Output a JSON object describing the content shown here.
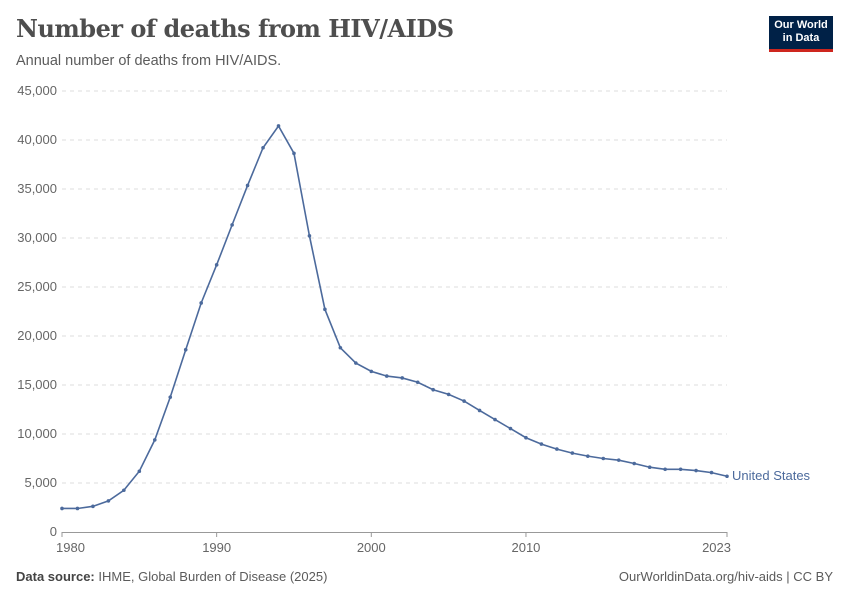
{
  "header": {
    "title": "Number of deaths from HIV/AIDS",
    "subtitle": "Annual number of deaths from HIV/AIDS.",
    "logo": "Our World in Data"
  },
  "footer": {
    "source_label": "Data source:",
    "source": "IHME, Global Burden of Disease (2025)",
    "url": "OurWorldinData.org/hiv-aids | CC BY"
  },
  "chart_data": {
    "type": "line",
    "title": "Number of deaths from HIV/AIDS",
    "xlim": [
      1980,
      2023
    ],
    "ylim": [
      0,
      45000
    ],
    "x_ticks": [
      1980,
      1990,
      2000,
      2010,
      2023
    ],
    "y_ticks": [
      0,
      5000,
      10000,
      15000,
      20000,
      25000,
      30000,
      35000,
      40000,
      45000
    ],
    "y_tick_labels": [
      "0",
      "5,000",
      "10,000",
      "15,000",
      "20,000",
      "25,000",
      "30,000",
      "35,000",
      "40,000",
      "45,000"
    ],
    "grid": "horizontal dashed",
    "series": [
      {
        "name": "United States",
        "color": "#4c6a9c",
        "x": [
          1980,
          1981,
          1982,
          1983,
          1984,
          1985,
          1986,
          1987,
          1988,
          1989,
          1990,
          1991,
          1992,
          1993,
          1994,
          1995,
          1996,
          1997,
          1998,
          1999,
          2000,
          2001,
          2002,
          2003,
          2004,
          2005,
          2006,
          2007,
          2008,
          2009,
          2010,
          2011,
          2012,
          2013,
          2014,
          2015,
          2016,
          2017,
          2018,
          2019,
          2020,
          2021,
          2022,
          2023
        ],
        "values": [
          2400,
          2400,
          2620,
          3170,
          4260,
          6200,
          9400,
          13760,
          18600,
          23370,
          27260,
          31340,
          35360,
          39210,
          41430,
          38640,
          30220,
          22720,
          18800,
          17240,
          16390,
          15910,
          15720,
          15280,
          14520,
          14040,
          13360,
          12400,
          11470,
          10550,
          9620,
          8970,
          8460,
          8050,
          7740,
          7500,
          7330,
          6990,
          6610,
          6400,
          6400,
          6270,
          6060,
          5690
        ]
      }
    ]
  }
}
